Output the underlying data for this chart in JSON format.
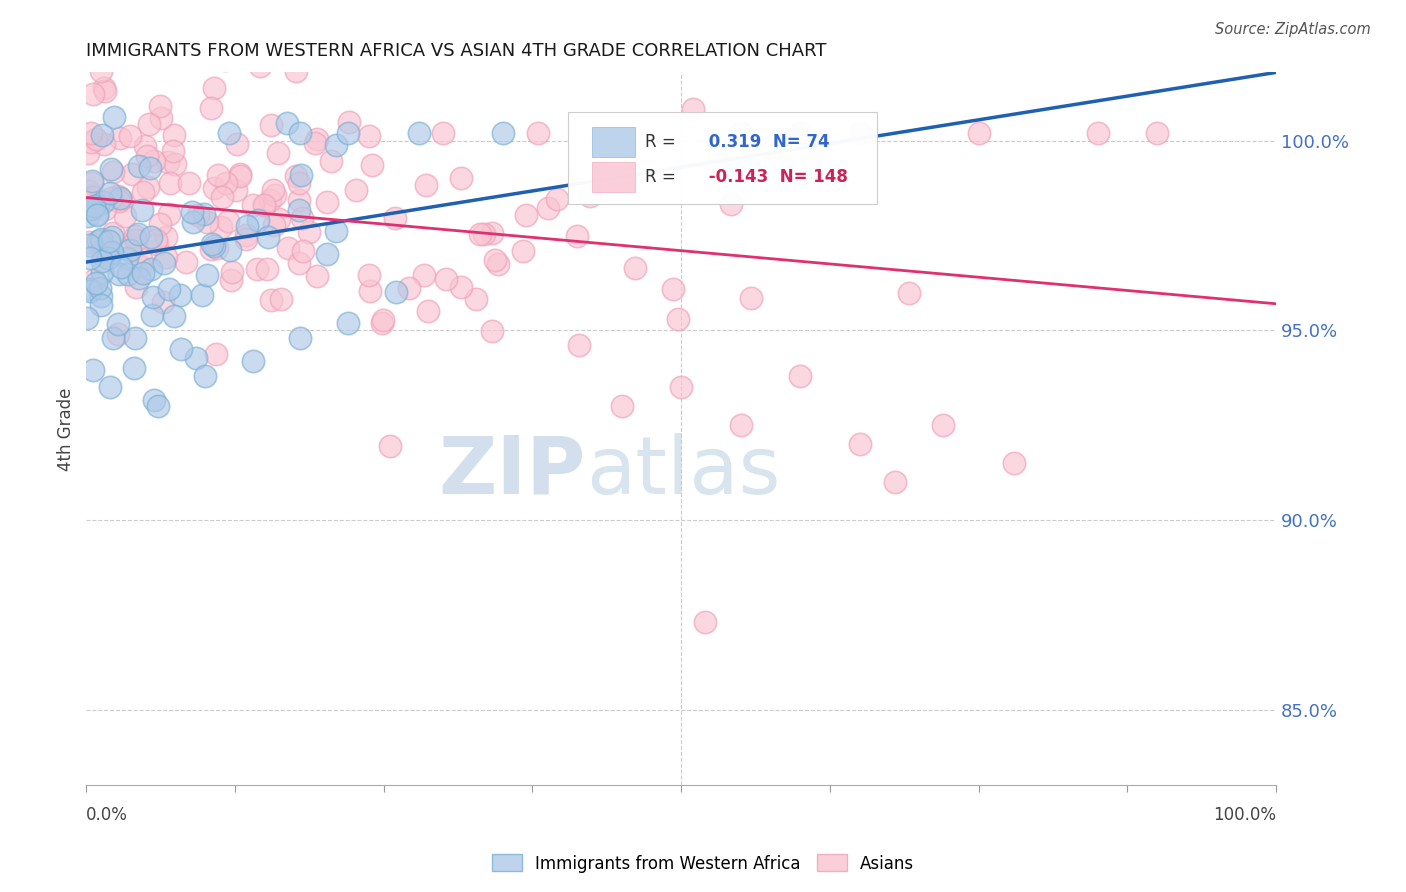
{
  "title": "IMMIGRANTS FROM WESTERN AFRICA VS ASIAN 4TH GRADE CORRELATION CHART",
  "source_text": "Source: ZipAtlas.com",
  "ylabel": "4th Grade",
  "xmin": 0.0,
  "xmax": 100.0,
  "ymin": 83.0,
  "ymax": 101.8,
  "yticks": [
    85.0,
    90.0,
    95.0,
    100.0
  ],
  "ytick_labels": [
    "85.0%",
    "90.0%",
    "95.0%",
    "100.0%"
  ],
  "legend_r_blue": "0.319",
  "legend_n_blue": "74",
  "legend_r_pink": "-0.143",
  "legend_n_pink": "148",
  "blue_fill_color": "#aec9e8",
  "blue_edge_color": "#7ab0d4",
  "pink_fill_color": "#f9c4d2",
  "pink_edge_color": "#f0a0b8",
  "blue_line_color": "#2060b0",
  "pink_line_color": "#e03070",
  "grid_color": "#cccccc",
  "background_color": "#ffffff",
  "seed": 42,
  "blue_x_concentrate": 6.0,
  "blue_y_base": 96.8,
  "blue_slope": 0.05,
  "pink_x_concentrate": 15.0,
  "pink_y_base": 98.5,
  "pink_slope": -0.028
}
